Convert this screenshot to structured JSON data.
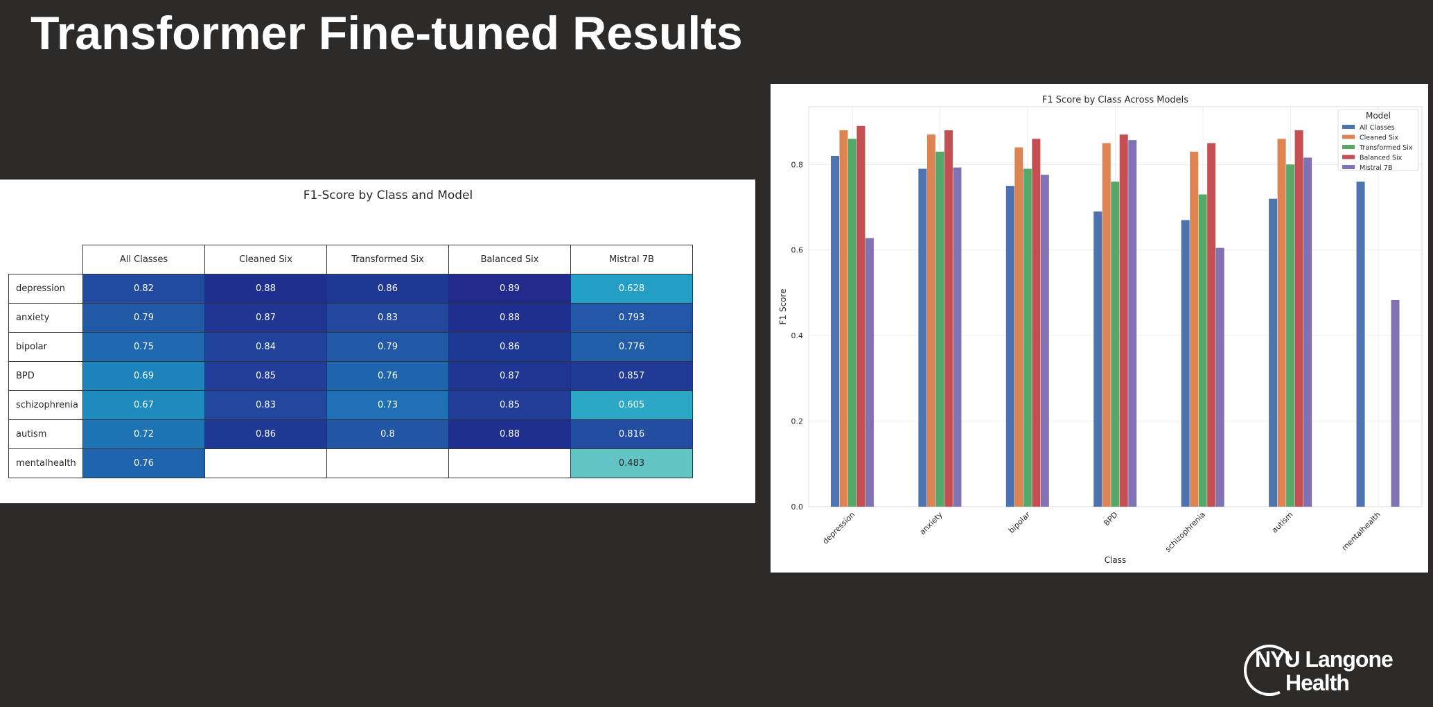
{
  "slide": {
    "title": "Transformer Fine-tuned Results",
    "logo_line1": "NYU Langone",
    "logo_line2": "Health"
  },
  "colors": {
    "background": "#2c2b29",
    "series": [
      "#4c72b0",
      "#dd8452",
      "#55a868",
      "#c44e52",
      "#8172b3"
    ]
  },
  "chart_data": [
    {
      "type": "table",
      "title": "F1-Score by Class and Model",
      "columns": [
        "All Classes",
        "Cleaned Six",
        "Transformed Six",
        "Balanced Six",
        "Mistral 7B"
      ],
      "rows": [
        {
          "label": "depression",
          "values": [
            "0.82",
            "0.88",
            "0.86",
            "0.89",
            "0.628"
          ]
        },
        {
          "label": "anxiety",
          "values": [
            "0.79",
            "0.87",
            "0.83",
            "0.88",
            "0.793"
          ]
        },
        {
          "label": "bipolar",
          "values": [
            "0.75",
            "0.84",
            "0.79",
            "0.86",
            "0.776"
          ]
        },
        {
          "label": "BPD",
          "values": [
            "0.69",
            "0.85",
            "0.76",
            "0.87",
            "0.857"
          ]
        },
        {
          "label": "schizophrenia",
          "values": [
            "0.67",
            "0.83",
            "0.73",
            "0.85",
            "0.605"
          ]
        },
        {
          "label": "autism",
          "values": [
            "0.72",
            "0.86",
            "0.8",
            "0.88",
            "0.816"
          ]
        },
        {
          "label": "mentalhealth",
          "values": [
            "0.76",
            "",
            "",
            "",
            "0.483"
          ]
        }
      ]
    },
    {
      "type": "bar",
      "title": "F1 Score by Class Across Models",
      "xlabel": "Class",
      "ylabel": "F1 Score",
      "ylim": [
        0,
        0.935
      ],
      "yticks": [
        "0.0",
        "0.2",
        "0.4",
        "0.6",
        "0.8"
      ],
      "grid": true,
      "legend_title": "Model",
      "legend_position": "top-right",
      "categories": [
        "depression",
        "anxiety",
        "bipolar",
        "BPD",
        "schizophrenia",
        "autism",
        "mentalhealth"
      ],
      "series": [
        {
          "name": "All Classes",
          "values": [
            0.82,
            0.79,
            0.75,
            0.69,
            0.67,
            0.72,
            0.76
          ]
        },
        {
          "name": "Cleaned Six",
          "values": [
            0.88,
            0.87,
            0.84,
            0.85,
            0.83,
            0.86,
            null
          ]
        },
        {
          "name": "Transformed Six",
          "values": [
            0.86,
            0.83,
            0.79,
            0.76,
            0.73,
            0.8,
            null
          ]
        },
        {
          "name": "Balanced Six",
          "values": [
            0.89,
            0.88,
            0.86,
            0.87,
            0.85,
            0.88,
            null
          ]
        },
        {
          "name": "Mistral 7B",
          "values": [
            0.628,
            0.793,
            0.776,
            0.857,
            0.605,
            0.816,
            0.483
          ]
        }
      ]
    }
  ]
}
